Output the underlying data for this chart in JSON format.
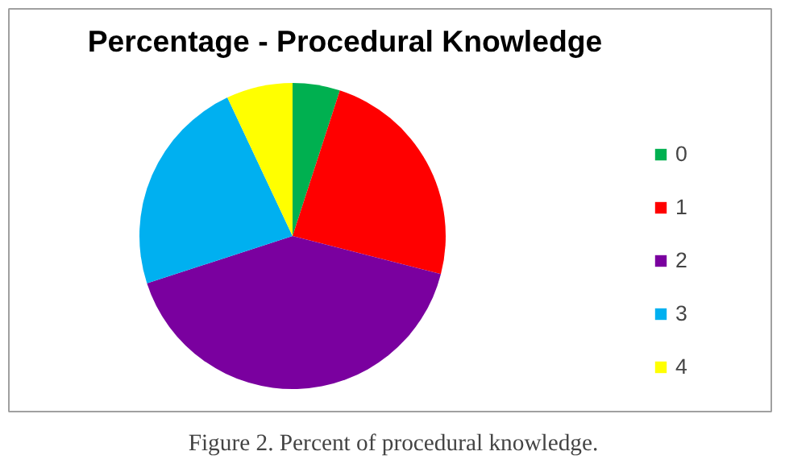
{
  "chart_data": {
    "type": "pie",
    "title": "Percentage - Procedural Knowledge",
    "categories": [
      "0",
      "1",
      "2",
      "3",
      "4"
    ],
    "values": [
      5,
      24,
      41,
      23,
      7
    ],
    "colors": [
      "#00b050",
      "#ff0000",
      "#7a009f",
      "#00b0f0",
      "#ffff00"
    ],
    "legend": "right",
    "annotations": [
      "Figure 2. Percent of procedural knowledge."
    ]
  }
}
